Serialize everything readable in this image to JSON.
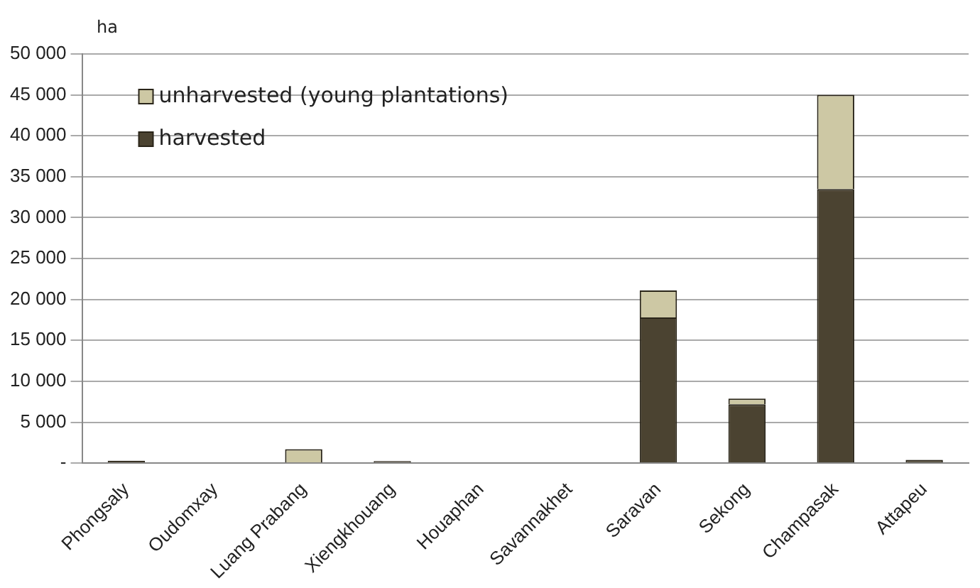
{
  "chart_data": {
    "type": "bar",
    "ylabel": "ha",
    "stacked": true,
    "grid": "y",
    "legend": "top left",
    "categories": [
      "Phongsaly",
      "Oudomxay",
      "Luang Prabang",
      "Xiengkhouang",
      "Houaphan",
      "Savannakhet",
      "Saravan",
      "Sekong",
      "Champasak",
      "Attapeu"
    ],
    "series": [
      {
        "name": "harvested",
        "color": "#4b4331",
        "values": [
          300,
          0,
          0,
          250,
          0,
          0,
          17800,
          7200,
          33500,
          400
        ]
      },
      {
        "name": "unharvested (young plantations)",
        "color": "#cdc8a4",
        "values": [
          0,
          0,
          1700,
          0,
          0,
          0,
          3300,
          700,
          11500,
          0
        ]
      }
    ],
    "ylim": [
      0,
      50000
    ],
    "yticks": [
      {
        "value": 0,
        "label": "-"
      },
      {
        "value": 5000,
        "label": "5 000"
      },
      {
        "value": 10000,
        "label": "10 000"
      },
      {
        "value": 15000,
        "label": "15 000"
      },
      {
        "value": 20000,
        "label": "20 000"
      },
      {
        "value": 25000,
        "label": "25 000"
      },
      {
        "value": 30000,
        "label": "30 000"
      },
      {
        "value": 35000,
        "label": "35 000"
      },
      {
        "value": 40000,
        "label": "40 000"
      },
      {
        "value": 45000,
        "label": "45 000"
      },
      {
        "value": 50000,
        "label": "50 000"
      }
    ]
  }
}
